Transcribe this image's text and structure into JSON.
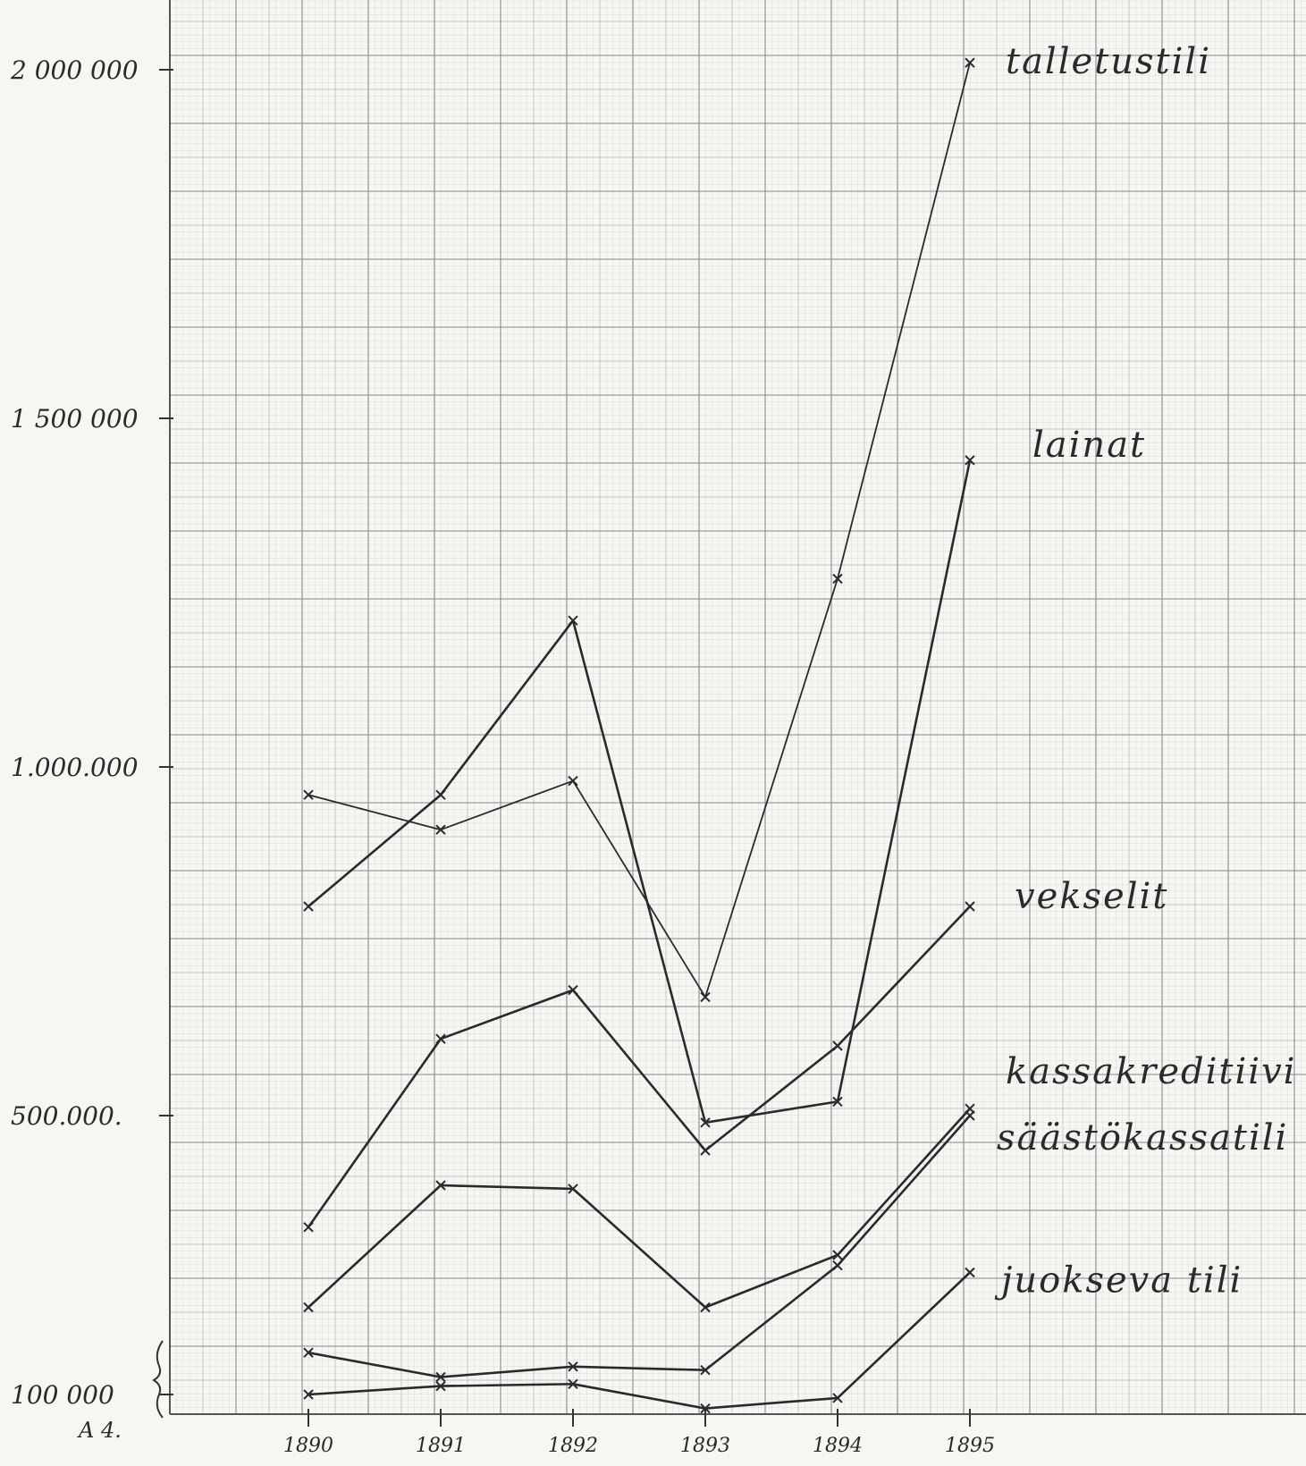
{
  "chart_data": {
    "type": "line",
    "title": "",
    "xlabel": "",
    "ylabel": "",
    "x": [
      1890,
      1891,
      1892,
      1893,
      1894,
      1895
    ],
    "x_tick_labels": [
      "1890",
      "1891",
      "1892",
      "1893",
      "1894",
      "1895"
    ],
    "y_tick_labels": [
      "2 000 000",
      "1 500 000",
      "1.000.000",
      "500.000.",
      "100 000"
    ],
    "y_tick_values": [
      2000000,
      1500000,
      1000000,
      500000,
      100000
    ],
    "ylim": [
      100000,
      2050000
    ],
    "grid": true,
    "legend": "labels at right end of lines",
    "line_color": "#2a2a2a",
    "paper_color": "#f6f6f3",
    "grid_color": "#9a9a9a",
    "series": [
      {
        "name": "talletustili",
        "values": [
          960000,
          910000,
          980000,
          670000,
          1270000,
          2010000
        ]
      },
      {
        "name": "lainat",
        "values": [
          800000,
          960000,
          1210000,
          490000,
          520000,
          1440000
        ]
      },
      {
        "name": "vekselit",
        "values": [
          340000,
          610000,
          680000,
          450000,
          600000,
          800000
        ]
      },
      {
        "name": "kassakreditiivi",
        "values": [
          225000,
          400000,
          395000,
          225000,
          300000,
          510000
        ]
      },
      {
        "name": "säästökassatili",
        "values": [
          160000,
          125000,
          140000,
          135000,
          285000,
          500000
        ]
      },
      {
        "name": "juokseva tili",
        "values": [
          100000,
          112000,
          115000,
          80000,
          95000,
          275000
        ]
      }
    ],
    "note": "A 4."
  }
}
